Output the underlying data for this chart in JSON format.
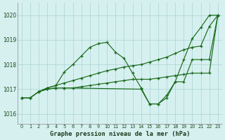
{
  "xlabel": "Graphe pression niveau de la mer (hPa)",
  "xlim": [
    -0.5,
    23.5
  ],
  "ylim": [
    1015.6,
    1020.5
  ],
  "yticks": [
    1016,
    1017,
    1018,
    1019,
    1020
  ],
  "xticks": [
    0,
    1,
    2,
    3,
    4,
    5,
    6,
    7,
    8,
    9,
    10,
    11,
    12,
    13,
    14,
    15,
    16,
    17,
    18,
    19,
    20,
    21,
    22,
    23
  ],
  "background_color": "#d6f0f0",
  "grid_color": "#b0d8d8",
  "line_color": "#1a6b1a",
  "series": [
    {
      "x": [
        0,
        1,
        2,
        3,
        4,
        5,
        6,
        7,
        8,
        9,
        10,
        11,
        12,
        13,
        14,
        15,
        16,
        17,
        18,
        19,
        20,
        21,
        22,
        23
      ],
      "y": [
        1016.65,
        1016.65,
        1016.9,
        1017.05,
        1017.15,
        1017.7,
        1018.0,
        1018.35,
        1018.7,
        1018.85,
        1018.9,
        1018.5,
        1018.25,
        1017.65,
        1017.05,
        1016.4,
        1016.4,
        1016.75,
        1017.3,
        1018.2,
        1019.05,
        1019.5,
        1020.0,
        1020.0
      ]
    },
    {
      "x": [
        0,
        1,
        2,
        3,
        4,
        5,
        6,
        7,
        8,
        9,
        10,
        11,
        12,
        13,
        14,
        15,
        16,
        17,
        18,
        19,
        20,
        21,
        22,
        23
      ],
      "y": [
        1016.65,
        1016.65,
        1016.9,
        1017.05,
        1017.15,
        1017.25,
        1017.35,
        1017.45,
        1017.55,
        1017.65,
        1017.75,
        1017.82,
        1017.9,
        1017.95,
        1018.0,
        1018.1,
        1018.2,
        1018.3,
        1018.45,
        1018.6,
        1018.7,
        1018.75,
        1019.55,
        1020.0
      ]
    },
    {
      "x": [
        0,
        1,
        2,
        3,
        4,
        5,
        6,
        7,
        8,
        9,
        10,
        11,
        12,
        13,
        14,
        15,
        16,
        17,
        18,
        19,
        20,
        21,
        22,
        23
      ],
      "y": [
        1016.65,
        1016.65,
        1016.9,
        1017.0,
        1017.05,
        1017.05,
        1017.05,
        1017.1,
        1017.15,
        1017.2,
        1017.25,
        1017.3,
        1017.35,
        1017.4,
        1017.4,
        1017.4,
        1017.45,
        1017.5,
        1017.55,
        1017.6,
        1017.65,
        1017.65,
        1017.65,
        1020.0
      ]
    },
    {
      "x": [
        2,
        3,
        4,
        5,
        14,
        15,
        16,
        17,
        18,
        19,
        20,
        21,
        22,
        23
      ],
      "y": [
        1016.9,
        1017.0,
        1017.05,
        1017.05,
        1017.0,
        1016.4,
        1016.4,
        1016.65,
        1017.3,
        1017.3,
        1018.2,
        1018.2,
        1018.2,
        1020.0
      ]
    }
  ]
}
